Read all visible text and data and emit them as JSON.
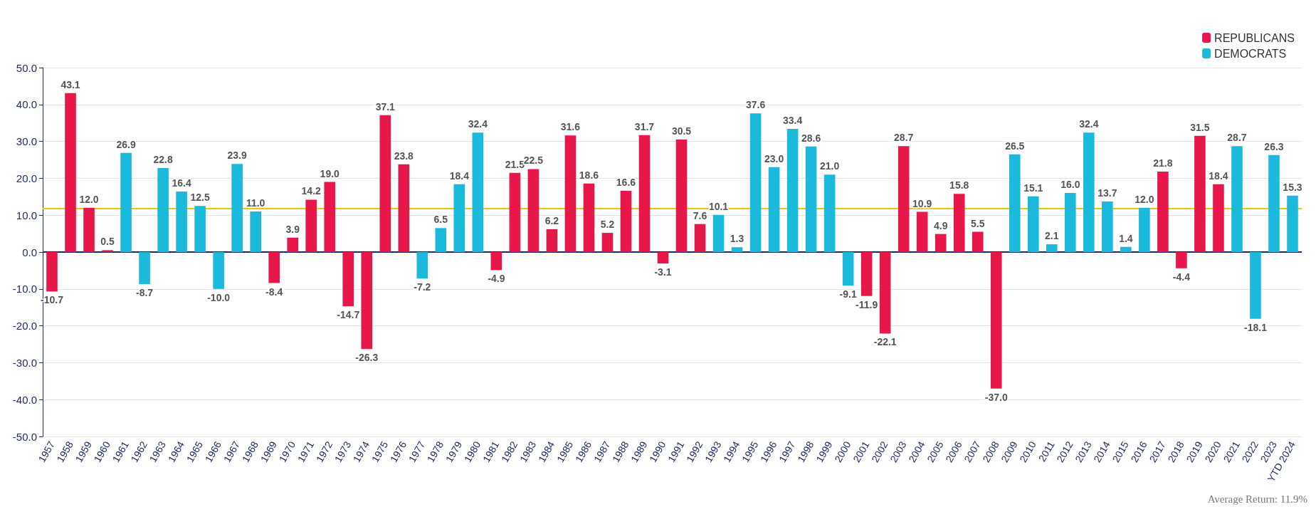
{
  "chart_data": {
    "type": "bar",
    "categories": [
      "1957",
      "1958",
      "1959",
      "1960",
      "1961",
      "1962",
      "1963",
      "1964",
      "1965",
      "1966",
      "1967",
      "1968",
      "1969",
      "1970",
      "1971",
      "1972",
      "1973",
      "1974",
      "1975",
      "1976",
      "1977",
      "1978",
      "1979",
      "1980",
      "1981",
      "1982",
      "1983",
      "1984",
      "1985",
      "1986",
      "1987",
      "1988",
      "1989",
      "1990",
      "1991",
      "1992",
      "1993",
      "1994",
      "1995",
      "1996",
      "1997",
      "1998",
      "1999",
      "2000",
      "2001",
      "2002",
      "2003",
      "2004",
      "2005",
      "2006",
      "2007",
      "2008",
      "2009",
      "2010",
      "2011",
      "2012",
      "2013",
      "2014",
      "2015",
      "2016",
      "2017",
      "2018",
      "2019",
      "2020",
      "2021",
      "2022",
      "2023",
      "YTD 2024"
    ],
    "series": [
      {
        "name": "REPUBLICANS",
        "color": "#e8174a",
        "values": [
          -10.7,
          43.1,
          12.0,
          0.5,
          null,
          null,
          null,
          null,
          null,
          null,
          null,
          null,
          -8.4,
          3.9,
          14.2,
          19.0,
          -14.7,
          -26.3,
          37.1,
          23.8,
          null,
          null,
          null,
          null,
          -4.9,
          21.5,
          22.5,
          6.2,
          31.6,
          18.6,
          5.2,
          16.6,
          31.7,
          -3.1,
          30.5,
          7.6,
          null,
          null,
          null,
          null,
          null,
          null,
          null,
          null,
          -11.9,
          -22.1,
          28.7,
          10.9,
          4.9,
          15.8,
          5.5,
          -37.0,
          null,
          null,
          null,
          null,
          null,
          null,
          null,
          null,
          21.8,
          -4.4,
          31.5,
          18.4,
          null,
          null,
          null,
          null
        ],
        "value_labels": [
          "-10.7",
          "43.1",
          "12.0",
          "0.5",
          null,
          null,
          null,
          null,
          null,
          null,
          null,
          null,
          "-8.4",
          "3.9",
          "14.2",
          "19.0",
          "-14.7",
          "-26.3",
          "37.1",
          "23.8",
          null,
          null,
          null,
          null,
          "-4.9",
          "21.5",
          "22.5",
          "6.2",
          "31.6",
          "18.6",
          "5.2",
          "16.6",
          "31.7",
          "-3.1",
          "30.5",
          "7.6",
          null,
          null,
          null,
          null,
          null,
          null,
          null,
          null,
          "-11.9",
          "-22.1",
          "28.7",
          "10.9",
          "4.9",
          "15.8",
          "5.5",
          "-37.0",
          null,
          null,
          null,
          null,
          null,
          null,
          null,
          null,
          "21.8",
          "-4.4",
          "31.5",
          "18.4",
          null,
          null,
          null,
          null
        ]
      },
      {
        "name": "DEMOCRATS",
        "color": "#1bb9db",
        "values": [
          null,
          null,
          null,
          null,
          26.9,
          -8.7,
          22.8,
          16.4,
          12.5,
          -10.0,
          23.9,
          11.0,
          null,
          null,
          null,
          null,
          null,
          null,
          null,
          null,
          -7.2,
          6.5,
          18.4,
          32.4,
          null,
          null,
          null,
          null,
          null,
          null,
          null,
          null,
          null,
          null,
          null,
          null,
          10.1,
          1.3,
          37.6,
          23.0,
          33.4,
          28.6,
          21.0,
          -9.1,
          null,
          null,
          null,
          null,
          null,
          null,
          null,
          null,
          26.5,
          15.1,
          2.1,
          16.0,
          32.4,
          13.7,
          1.4,
          12.0,
          null,
          null,
          null,
          null,
          28.7,
          -18.1,
          26.3,
          15.3
        ],
        "value_labels": [
          null,
          null,
          null,
          null,
          "26.9",
          "-8.7",
          "22.8",
          "16.4",
          "12.5",
          "-10.0",
          "23.9",
          "11.0",
          null,
          null,
          null,
          null,
          null,
          null,
          null,
          null,
          "-7.2",
          "6.5",
          "18.4",
          "32.4",
          null,
          null,
          null,
          null,
          null,
          null,
          null,
          null,
          null,
          null,
          null,
          null,
          "10.1",
          "1.3",
          "37.6",
          "23.0",
          "33.4",
          "28.6",
          "21.0",
          "-9.1",
          null,
          null,
          null,
          null,
          null,
          null,
          null,
          null,
          "26.5",
          "15.1",
          "2.1",
          "16.0",
          "32.4",
          "13.7",
          "1.4",
          "12.0",
          null,
          null,
          null,
          null,
          "28.7",
          "-18.1",
          "26.3",
          "15.3"
        ]
      }
    ],
    "ylim": [
      -50,
      50
    ],
    "yticks": [
      {
        "value": -50,
        "label": "-50.0"
      },
      {
        "value": -40,
        "label": "-40.0"
      },
      {
        "value": -30,
        "label": "-30.0"
      },
      {
        "value": -20,
        "label": "-20.0"
      },
      {
        "value": -10,
        "label": "-10.0"
      },
      {
        "value": 0,
        "label": "0.0"
      },
      {
        "value": 10,
        "label": "10.0"
      },
      {
        "value": 20,
        "label": "20.0"
      },
      {
        "value": 30,
        "label": "30.0"
      },
      {
        "value": 40,
        "label": "40.0"
      },
      {
        "value": 50,
        "label": "50.0"
      }
    ],
    "ref_lines": [
      {
        "axis": "y",
        "value": 11.9,
        "color": "#f2c500"
      },
      {
        "axis": "y",
        "value": 0,
        "color": "#1f2a6e"
      }
    ],
    "annotations": [
      "Average Return: 11.9%"
    ],
    "grid": "y",
    "legend": "top right"
  }
}
